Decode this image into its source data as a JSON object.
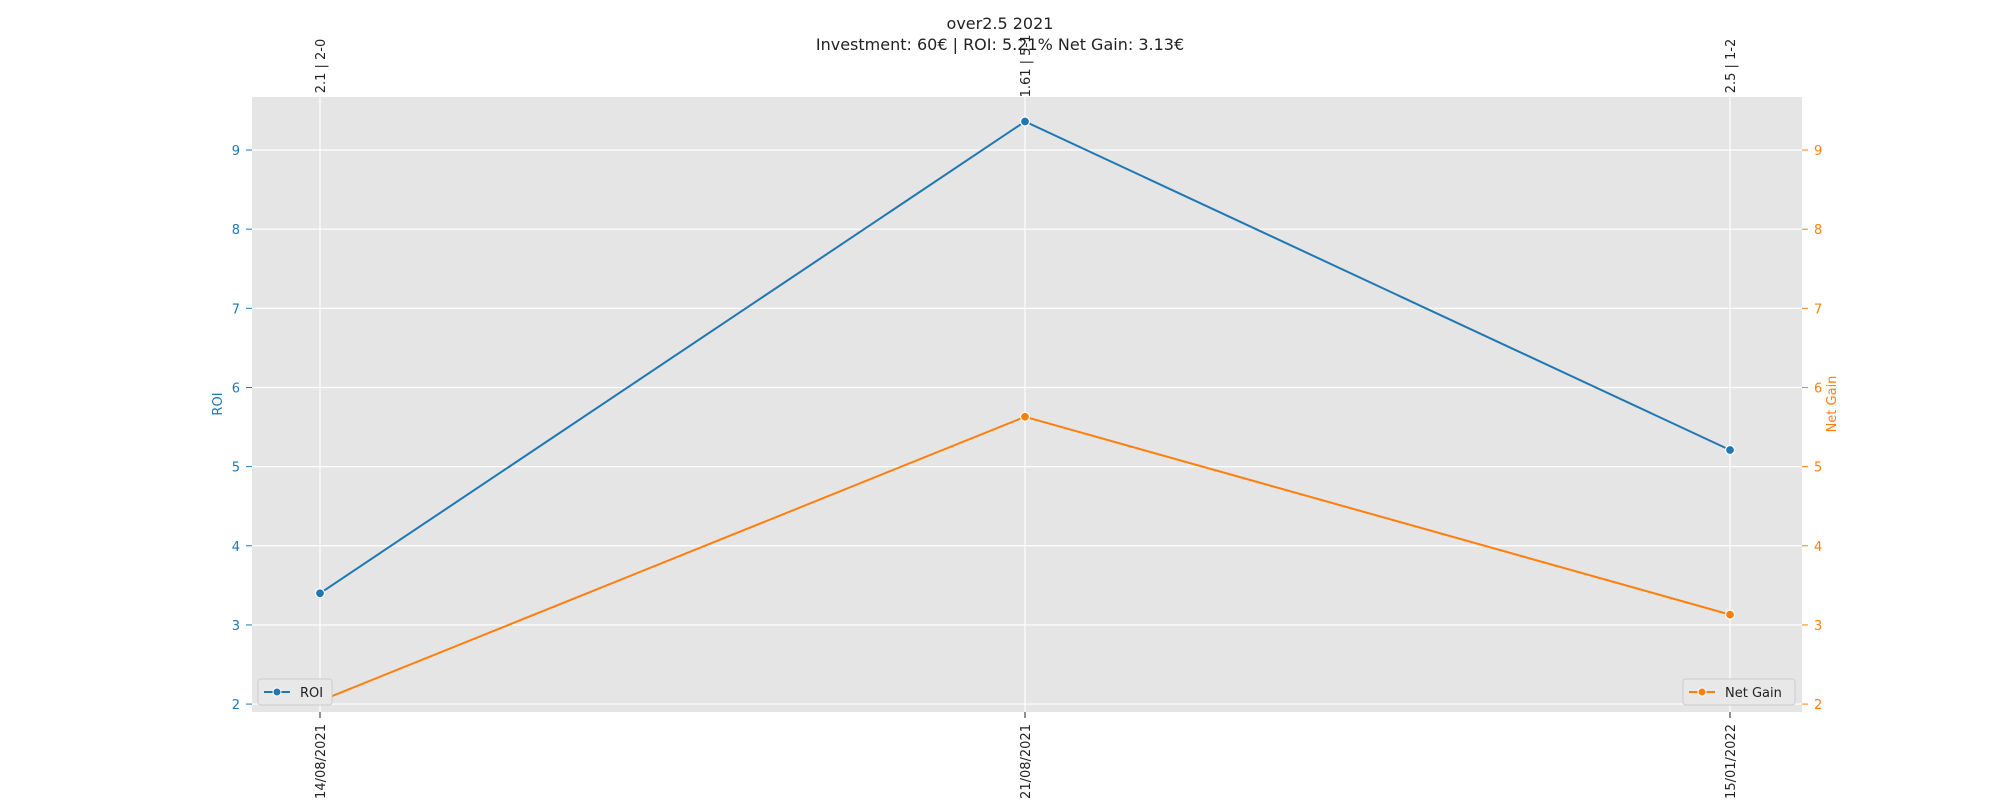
{
  "chart_data": {
    "type": "line",
    "title": "over2.5 2021",
    "subtitle": "Investment: 60€ | ROI: 5.21% Net Gain: 3.13€",
    "x": [
      "14/08/2021",
      "21/08/2021",
      "15/01/2022"
    ],
    "top_labels": [
      "2.1 | 2-0",
      "1.61 | 5-1",
      "2.5 | 1-2"
    ],
    "ylabel_left": "ROI",
    "ylabel_right": "Net Gain",
    "ylim": [
      1.9,
      9.67
    ],
    "yticks": [
      2,
      3,
      4,
      5,
      6,
      7,
      8,
      9
    ],
    "grid": true,
    "series": [
      {
        "name": "ROI",
        "axis": "left",
        "color": "#1f77b4",
        "values": [
          3.4,
          9.36,
          5.21
        ],
        "legend": "lower-left"
      },
      {
        "name": "Net Gain",
        "axis": "right",
        "color": "#ff7f0e",
        "values": [
          2.04,
          5.63,
          3.13
        ],
        "legend": "lower-right"
      }
    ],
    "colors": {
      "plot_background": "#e5e5e5",
      "grid": "#ffffff",
      "text": "#222222"
    }
  }
}
